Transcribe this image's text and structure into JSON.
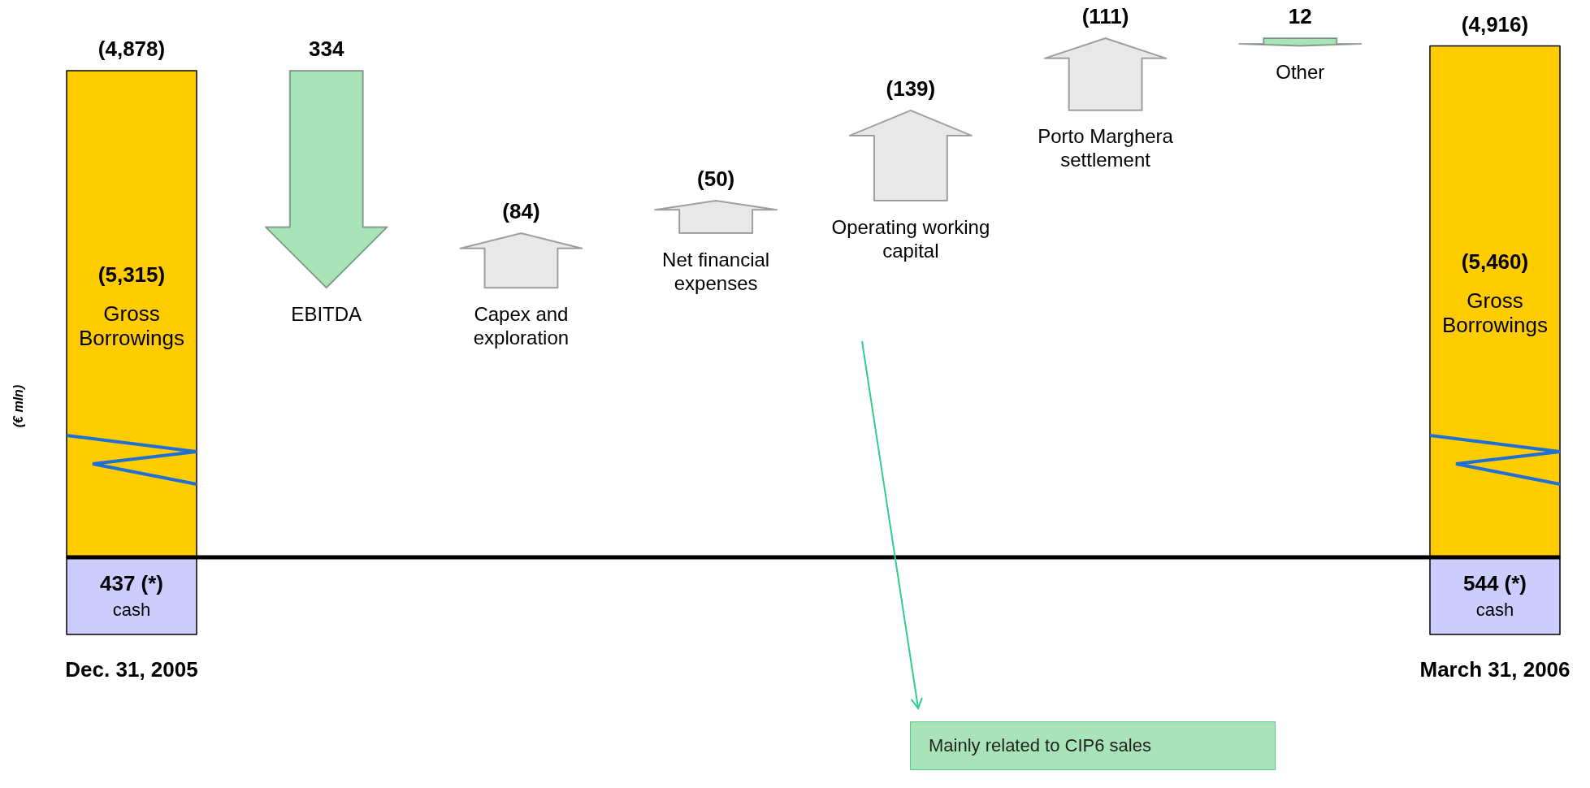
{
  "chart_data": {
    "type": "other",
    "ylabel": "(€ mln)",
    "categories": [
      "Dec. 31, 2005",
      "EBITDA",
      "Capex and exploration",
      "Net financial expenses",
      "Operating working capital",
      "Porto Marghera settlement",
      "Other",
      "March 31, 2006"
    ],
    "series": [
      {
        "name": "cash",
        "color": "#ccccff",
        "values": [
          437,
          null,
          null,
          null,
          null,
          null,
          null,
          544
        ],
        "value_labels": [
          "437 (*)",
          null,
          null,
          null,
          null,
          null,
          null,
          "544 (*)"
        ]
      },
      {
        "colors": [
          "#ffcc00",
          "#a8e4b8",
          "#e8e8e8",
          "#e8e8e8",
          "#e8e8e8",
          "#e8e8e8",
          "#a8e4b8",
          "#ffcc00"
        ],
        "values": [
          -4878,
          334,
          -84,
          -50,
          -139,
          -111,
          12,
          -4916
        ],
        "value_labels": [
          "(4,878)",
          "334",
          "(84)",
          "(50)",
          "(139)",
          "(111)",
          "12",
          "(4,916)"
        ]
      }
    ],
    "annotations": [
      "(5,315)",
      "Gross Borrowings",
      "(5,460)",
      "Gross Borrowings",
      "Mainly related to CIP6 sales"
    ]
  }
}
